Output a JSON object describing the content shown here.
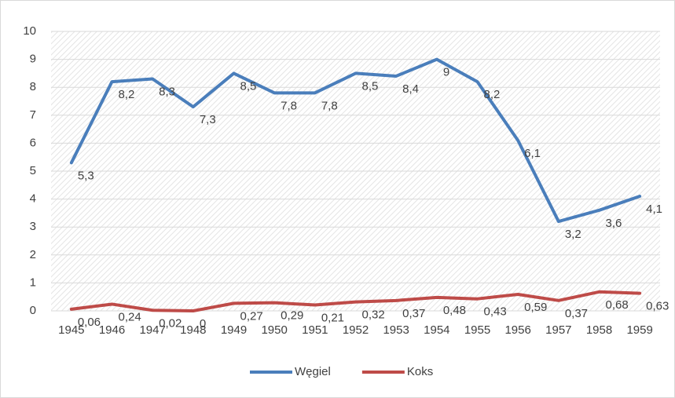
{
  "chart_data": {
    "type": "line",
    "categories": [
      "1945",
      "1946",
      "1947",
      "1948",
      "1949",
      "1950",
      "1951",
      "1952",
      "1953",
      "1954",
      "1955",
      "1956",
      "1957",
      "1958",
      "1959"
    ],
    "series": [
      {
        "name": "Węgiel",
        "color": "#4a7ebb",
        "values": [
          5.3,
          8.2,
          8.3,
          7.3,
          8.5,
          7.8,
          7.8,
          8.5,
          8.4,
          9,
          8.2,
          6.1,
          3.2,
          3.6,
          4.1
        ],
        "value_labels": [
          "5,3",
          "8,2",
          "8,3",
          "7,3",
          "8,5",
          "7,8",
          "7,8",
          "8,5",
          "8,4",
          "9",
          "8,2",
          "6,1",
          "3,2",
          "3,6",
          "4,1"
        ]
      },
      {
        "name": "Koks",
        "color": "#be4b48",
        "values": [
          0.06,
          0.24,
          0.02,
          0,
          0.27,
          0.29,
          0.21,
          0.32,
          0.37,
          0.48,
          0.43,
          0.59,
          0.37,
          0.68,
          0.63
        ],
        "value_labels": [
          "0,06",
          "0,24",
          "0,02",
          "0",
          "0,27",
          "0,29",
          "0,21",
          "0,32",
          "0,37",
          "0,48",
          "0,43",
          "0,59",
          "0,37",
          "0,68",
          "0,63"
        ]
      }
    ],
    "ylim": [
      0,
      10
    ],
    "yticks": [
      0,
      1,
      2,
      3,
      4,
      5,
      6,
      7,
      8,
      9,
      10
    ],
    "grid": true,
    "legend": "bottom"
  }
}
